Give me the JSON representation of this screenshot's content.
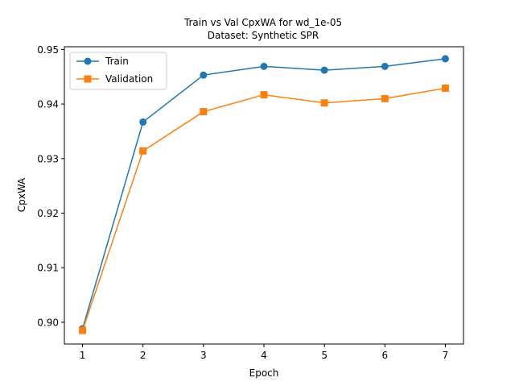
{
  "chart_data": {
    "type": "line",
    "title": "Train vs Val CpxWA for wd_1e-05",
    "subtitle": "Dataset: Synthetic SPR",
    "xlabel": "Epoch",
    "ylabel": "CpxWA",
    "x": [
      1,
      2,
      3,
      4,
      5,
      6,
      7
    ],
    "xlim": [
      0.7,
      7.3
    ],
    "ylim": [
      0.896,
      0.9505
    ],
    "xticks": [
      1,
      2,
      3,
      4,
      5,
      6,
      7
    ],
    "yticks": [
      0.9,
      0.91,
      0.92,
      0.93,
      0.94,
      0.95
    ],
    "ytick_labels": [
      "0.90",
      "0.91",
      "0.92",
      "0.93",
      "0.94",
      "0.95"
    ],
    "grid": false,
    "legend_position": "upper-left",
    "series": [
      {
        "name": "Train",
        "marker": "circle",
        "color": "#1f77b4",
        "values": [
          0.8988,
          0.9367,
          0.9453,
          0.9469,
          0.9462,
          0.9469,
          0.9483
        ]
      },
      {
        "name": "Validation",
        "marker": "square",
        "color": "#ff7f0e",
        "values": [
          0.8985,
          0.9314,
          0.9386,
          0.9417,
          0.9402,
          0.941,
          0.9429
        ]
      }
    ]
  }
}
